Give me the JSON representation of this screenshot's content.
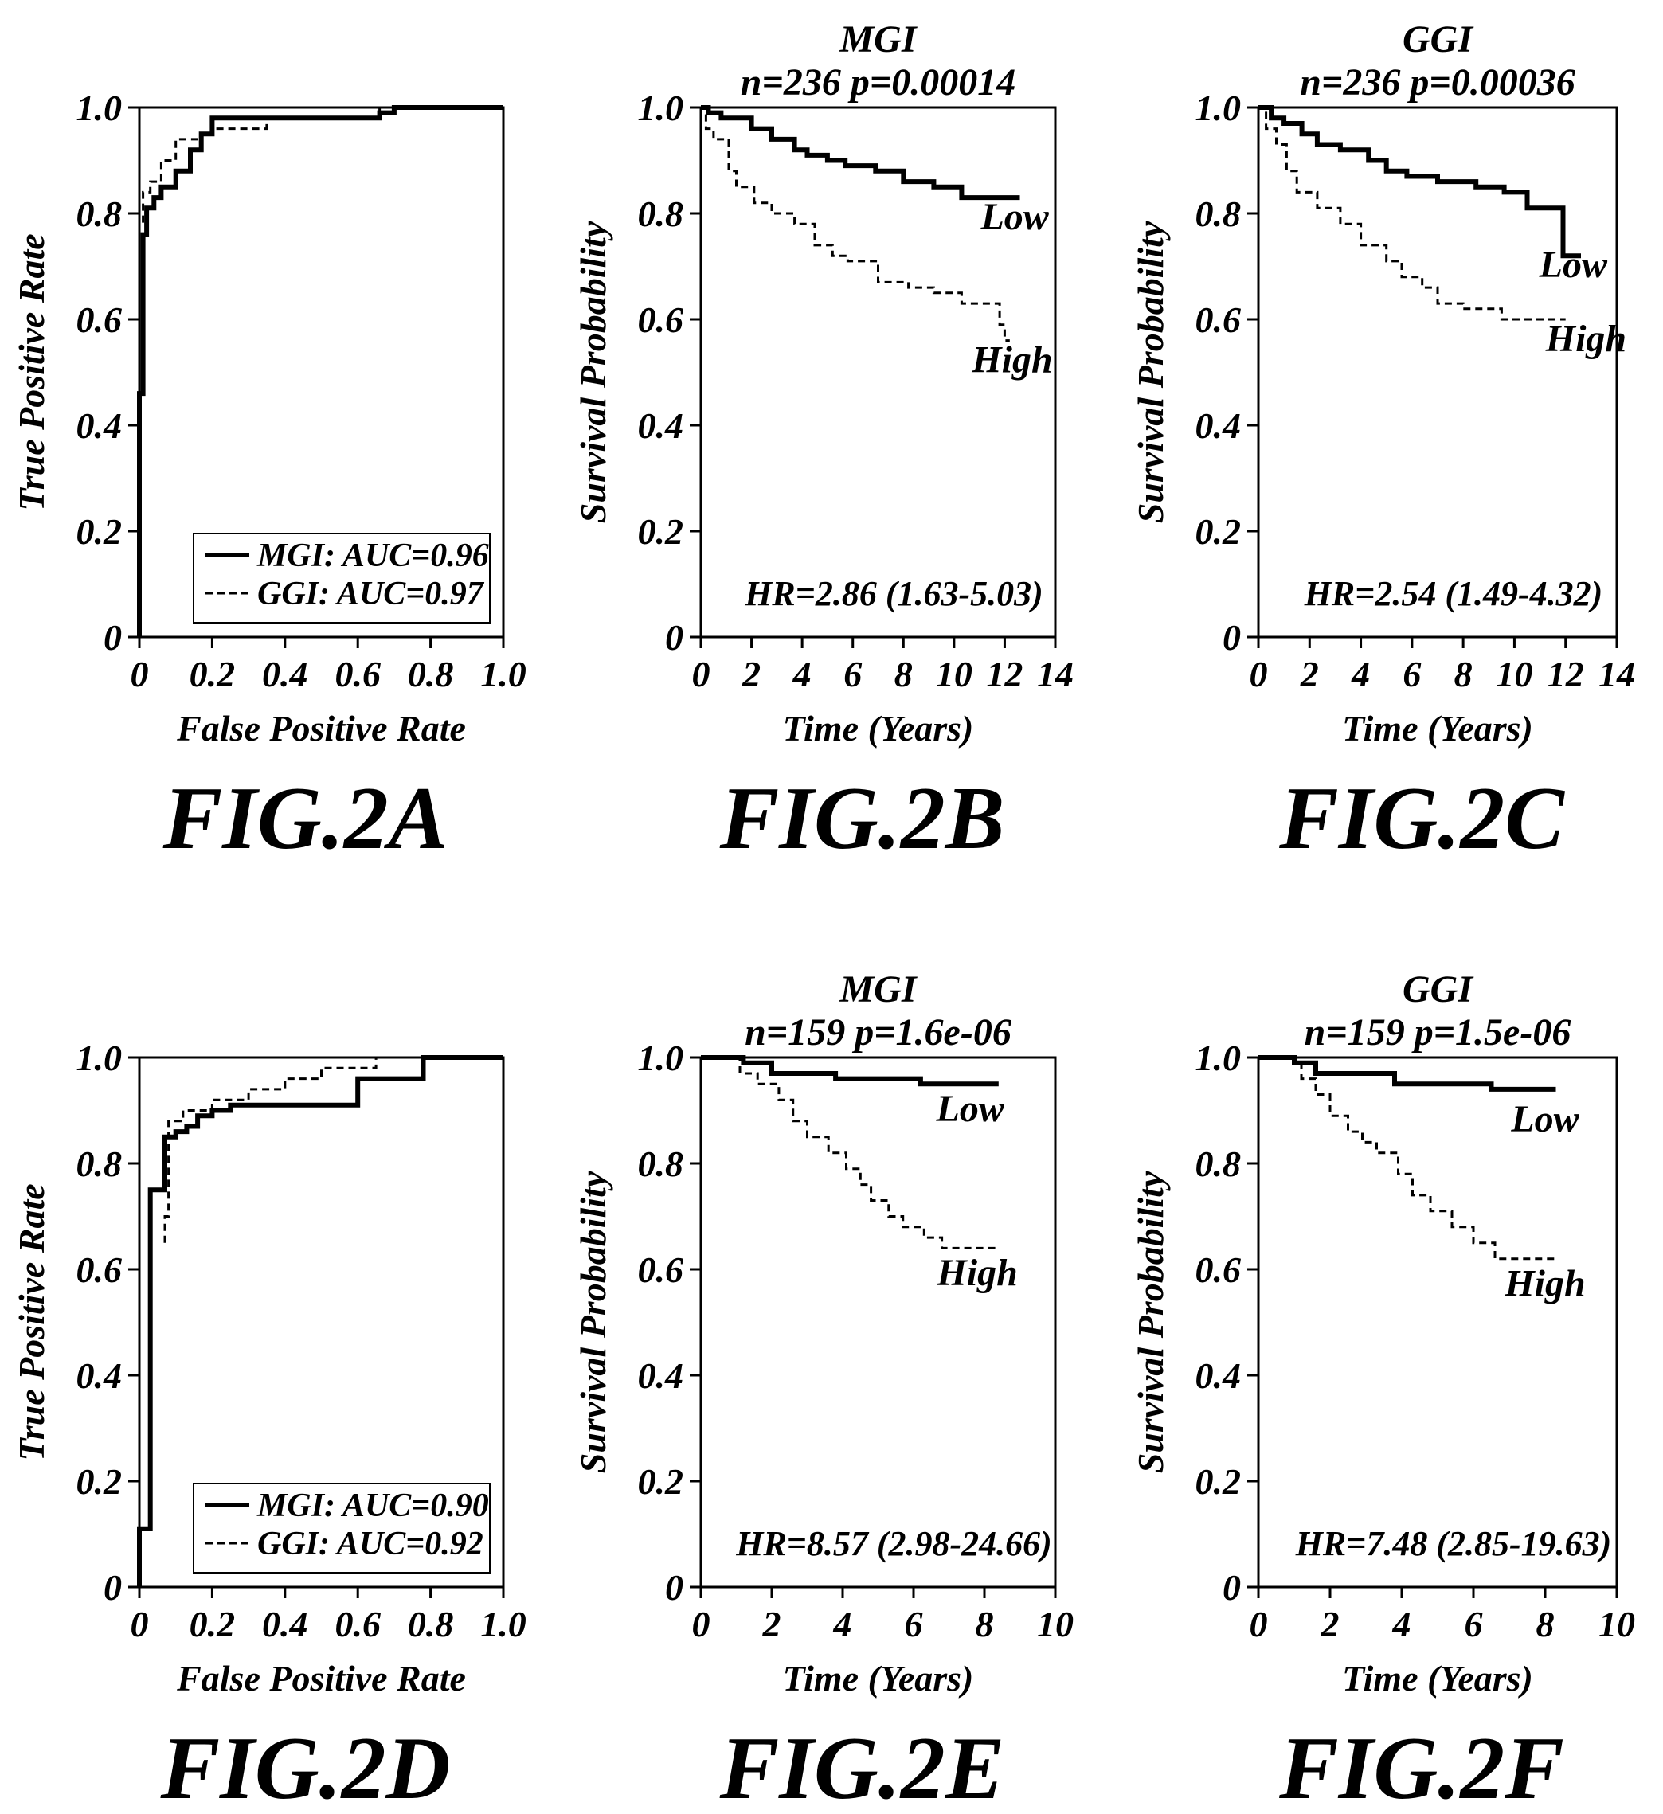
{
  "chart_data": [
    {
      "panel": "FIG.2A",
      "type": "line",
      "xlabel": "False Positive Rate",
      "ylabel": "True Positive Rate",
      "xlim": [
        0,
        1
      ],
      "ylim": [
        0,
        1
      ],
      "xticks": [
        "0",
        "0.2",
        "0.4",
        "0.6",
        "0.8",
        "1.0"
      ],
      "yticks": [
        "0",
        "0.2",
        "0.4",
        "0.6",
        "0.8",
        "1.0"
      ],
      "legend": [
        "MGI: AUC=0.96",
        "GGI: AUC=0.97"
      ],
      "legend_position": "bottom-right",
      "series": [
        {
          "name": "MGI: AUC=0.96",
          "style": "solid",
          "x": [
            0,
            0,
            0.01,
            0.01,
            0.02,
            0.02,
            0.04,
            0.04,
            0.06,
            0.06,
            0.1,
            0.1,
            0.14,
            0.14,
            0.17,
            0.17,
            0.2,
            0.2,
            0.66,
            0.66,
            0.7,
            0.7,
            1.0
          ],
          "y": [
            0,
            0.46,
            0.46,
            0.76,
            0.76,
            0.81,
            0.81,
            0.83,
            0.83,
            0.85,
            0.85,
            0.88,
            0.88,
            0.92,
            0.92,
            0.95,
            0.95,
            0.98,
            0.98,
            0.99,
            0.99,
            1.0,
            1.0
          ]
        },
        {
          "name": "GGI: AUC=0.97",
          "style": "dashed",
          "x": [
            0,
            0,
            0.01,
            0.01,
            0.03,
            0.03,
            0.06,
            0.06,
            0.1,
            0.1,
            0.17,
            0.17,
            0.2,
            0.2,
            0.35,
            0.35,
            0.66,
            0.66,
            1.0
          ],
          "y": [
            0,
            0.78,
            0.78,
            0.84,
            0.84,
            0.86,
            0.86,
            0.9,
            0.9,
            0.94,
            0.94,
            0.95,
            0.95,
            0.96,
            0.96,
            0.98,
            0.98,
            1.0,
            1.0
          ]
        }
      ],
      "figure_label": "FIG.2A"
    },
    {
      "panel": "FIG.2B",
      "type": "line",
      "title": "MGI",
      "subtitle": "n=236  p=0.00014",
      "xlabel": "Time  (Years)",
      "ylabel": "Survival Probability",
      "xlim": [
        0,
        14
      ],
      "ylim": [
        0,
        1
      ],
      "xticks": [
        "0",
        "2",
        "4",
        "6",
        "8",
        "10",
        "12",
        "14"
      ],
      "yticks": [
        "0",
        "0.2",
        "0.4",
        "0.6",
        "0.8",
        "1.0"
      ],
      "annotation": "HR=2.86 (1.63-5.03)",
      "series": [
        {
          "name": "Low",
          "style": "solid",
          "x": [
            0,
            0.3,
            0.3,
            0.8,
            0.8,
            2.0,
            2.0,
            2.8,
            2.8,
            3.7,
            3.7,
            4.2,
            4.2,
            5.0,
            5.0,
            5.7,
            5.7,
            6.9,
            6.9,
            8.0,
            8.0,
            9.2,
            9.2,
            10.3,
            10.3,
            11.8,
            11.8,
            12.6
          ],
          "y": [
            1.0,
            1.0,
            0.99,
            0.99,
            0.98,
            0.98,
            0.96,
            0.96,
            0.94,
            0.94,
            0.92,
            0.92,
            0.91,
            0.91,
            0.9,
            0.9,
            0.89,
            0.89,
            0.88,
            0.88,
            0.86,
            0.86,
            0.85,
            0.85,
            0.83,
            0.83,
            0.83,
            0.83
          ]
        },
        {
          "name": "High",
          "style": "dashed",
          "x": [
            0,
            0.2,
            0.2,
            0.5,
            0.5,
            1.1,
            1.1,
            1.4,
            1.4,
            2.1,
            2.1,
            2.8,
            2.8,
            3.7,
            3.7,
            4.5,
            4.5,
            5.2,
            5.2,
            5.8,
            5.8,
            7.0,
            7.0,
            8.2,
            8.2,
            9.2,
            9.2,
            10.3,
            10.3,
            11.8,
            11.8,
            12.0,
            12.0,
            12.2
          ],
          "y": [
            1.0,
            1.0,
            0.96,
            0.96,
            0.94,
            0.94,
            0.88,
            0.88,
            0.85,
            0.85,
            0.82,
            0.82,
            0.8,
            0.8,
            0.78,
            0.78,
            0.74,
            0.74,
            0.72,
            0.72,
            0.71,
            0.71,
            0.67,
            0.67,
            0.66,
            0.66,
            0.65,
            0.65,
            0.63,
            0.63,
            0.59,
            0.59,
            0.56,
            0.56
          ]
        }
      ],
      "series_labels": [
        "Low",
        "High"
      ],
      "figure_label": "FIG.2B"
    },
    {
      "panel": "FIG.2C",
      "type": "line",
      "title": "GGI",
      "subtitle": "n=236  p=0.00036",
      "xlabel": "Time  (Years)",
      "ylabel": "Survival Probability",
      "xlim": [
        0,
        14
      ],
      "ylim": [
        0,
        1
      ],
      "xticks": [
        "0",
        "2",
        "4",
        "6",
        "8",
        "10",
        "12",
        "14"
      ],
      "yticks": [
        "0",
        "0.2",
        "0.4",
        "0.6",
        "0.8",
        "1.0"
      ],
      "annotation": "HR=2.54 (1.49-4.32)",
      "series": [
        {
          "name": "Low",
          "style": "solid",
          "x": [
            0,
            0.5,
            0.5,
            1.0,
            1.0,
            1.7,
            1.7,
            2.3,
            2.3,
            3.2,
            3.2,
            4.3,
            4.3,
            5.0,
            5.0,
            5.8,
            5.8,
            7.0,
            7.0,
            8.5,
            8.5,
            9.6,
            9.6,
            10.5,
            10.5,
            11.9,
            11.9,
            12.6
          ],
          "y": [
            1.0,
            1.0,
            0.98,
            0.98,
            0.97,
            0.97,
            0.95,
            0.95,
            0.93,
            0.93,
            0.92,
            0.92,
            0.9,
            0.9,
            0.88,
            0.88,
            0.87,
            0.87,
            0.86,
            0.86,
            0.85,
            0.85,
            0.84,
            0.84,
            0.81,
            0.81,
            0.72,
            0.72
          ]
        },
        {
          "name": "High",
          "style": "dashed",
          "x": [
            0,
            0.3,
            0.3,
            0.7,
            0.7,
            1.1,
            1.1,
            1.5,
            1.5,
            2.3,
            2.3,
            3.2,
            3.2,
            4.0,
            4.0,
            5.0,
            5.0,
            5.6,
            5.6,
            6.4,
            6.4,
            7.0,
            7.0,
            8.0,
            8.0,
            9.5,
            9.5,
            12.0
          ],
          "y": [
            1.0,
            1.0,
            0.96,
            0.96,
            0.93,
            0.93,
            0.88,
            0.88,
            0.84,
            0.84,
            0.81,
            0.81,
            0.78,
            0.78,
            0.74,
            0.74,
            0.71,
            0.71,
            0.68,
            0.68,
            0.66,
            0.66,
            0.63,
            0.63,
            0.62,
            0.62,
            0.6,
            0.6
          ]
        }
      ],
      "series_labels": [
        "Low",
        "High"
      ],
      "figure_label": "FIG.2C"
    },
    {
      "panel": "FIG.2D",
      "type": "line",
      "xlabel": "False Positive Rate",
      "ylabel": "True Positive Rate",
      "xlim": [
        0,
        1
      ],
      "ylim": [
        0,
        1
      ],
      "xticks": [
        "0",
        "0.2",
        "0.4",
        "0.6",
        "0.8",
        "1.0"
      ],
      "yticks": [
        "0",
        "0.2",
        "0.4",
        "0.6",
        "0.8",
        "1.0"
      ],
      "legend": [
        "MGI: AUC=0.90",
        "GGI: AUC=0.92"
      ],
      "legend_position": "bottom-right",
      "series": [
        {
          "name": "MGI: AUC=0.90",
          "style": "solid",
          "x": [
            0,
            0,
            0.03,
            0.03,
            0.07,
            0.07,
            0.1,
            0.1,
            0.13,
            0.13,
            0.16,
            0.16,
            0.2,
            0.2,
            0.25,
            0.25,
            0.6,
            0.6,
            0.78,
            0.78,
            1.0
          ],
          "y": [
            0,
            0.11,
            0.11,
            0.75,
            0.75,
            0.85,
            0.85,
            0.86,
            0.86,
            0.87,
            0.87,
            0.89,
            0.89,
            0.9,
            0.9,
            0.91,
            0.91,
            0.96,
            0.96,
            1.0,
            1.0
          ]
        },
        {
          "name": "GGI: AUC=0.92",
          "style": "dashed",
          "x": [
            0.07,
            0.07,
            0.08,
            0.08,
            0.12,
            0.12,
            0.2,
            0.2,
            0.3,
            0.3,
            0.4,
            0.4,
            0.5,
            0.5,
            0.65,
            0.65,
            1.0
          ],
          "y": [
            0.65,
            0.7,
            0.7,
            0.88,
            0.88,
            0.9,
            0.9,
            0.92,
            0.92,
            0.94,
            0.94,
            0.96,
            0.96,
            0.98,
            0.98,
            1.0,
            1.0
          ]
        }
      ],
      "figure_label": "FIG.2D"
    },
    {
      "panel": "FIG.2E",
      "type": "line",
      "title": "MGI",
      "subtitle": "n=159  p=1.6e-06",
      "xlabel": "Time  (Years)",
      "ylabel": "Survival Probability",
      "xlim": [
        0,
        10
      ],
      "ylim": [
        0,
        1
      ],
      "xticks": [
        "0",
        "2",
        "4",
        "6",
        "8",
        "10"
      ],
      "yticks": [
        "0",
        "0.2",
        "0.4",
        "0.6",
        "0.8",
        "1.0"
      ],
      "annotation": "HR=8.57 (2.98-24.66)",
      "series": [
        {
          "name": "Low",
          "style": "solid",
          "x": [
            0,
            1.2,
            1.2,
            2.0,
            2.0,
            3.8,
            3.8,
            6.2,
            6.2,
            8.4
          ],
          "y": [
            1.0,
            1.0,
            0.99,
            0.99,
            0.97,
            0.97,
            0.96,
            0.96,
            0.95,
            0.95
          ]
        },
        {
          "name": "High",
          "style": "dashed",
          "x": [
            0,
            1.1,
            1.1,
            1.6,
            1.6,
            2.2,
            2.2,
            2.6,
            2.6,
            3.0,
            3.0,
            3.6,
            3.6,
            4.1,
            4.1,
            4.5,
            4.5,
            4.8,
            4.8,
            5.3,
            5.3,
            5.7,
            5.7,
            6.3,
            6.3,
            6.8,
            6.8,
            8.4
          ],
          "y": [
            1.0,
            1.0,
            0.97,
            0.97,
            0.95,
            0.95,
            0.92,
            0.92,
            0.88,
            0.88,
            0.85,
            0.85,
            0.82,
            0.82,
            0.79,
            0.79,
            0.76,
            0.76,
            0.73,
            0.73,
            0.7,
            0.7,
            0.68,
            0.68,
            0.66,
            0.66,
            0.64,
            0.64
          ]
        }
      ],
      "series_labels": [
        "Low",
        "High"
      ],
      "figure_label": "FIG.2E"
    },
    {
      "panel": "FIG.2F",
      "type": "line",
      "title": "GGI",
      "subtitle": "n=159  p=1.5e-06",
      "xlabel": "Time  (Years)",
      "ylabel": "Survival Probability",
      "xlim": [
        0,
        10
      ],
      "ylim": [
        0,
        1
      ],
      "xticks": [
        "0",
        "2",
        "4",
        "6",
        "8",
        "10"
      ],
      "yticks": [
        "0",
        "0.2",
        "0.4",
        "0.6",
        "0.8",
        "1.0"
      ],
      "annotation": "HR=7.48 (2.85-19.63)",
      "series": [
        {
          "name": "Low",
          "style": "solid",
          "x": [
            0,
            1.0,
            1.0,
            1.6,
            1.6,
            3.8,
            3.8,
            6.5,
            6.5,
            8.3
          ],
          "y": [
            1.0,
            1.0,
            0.99,
            0.99,
            0.97,
            0.97,
            0.95,
            0.95,
            0.94,
            0.94
          ]
        },
        {
          "name": "High",
          "style": "dashed",
          "x": [
            0,
            1.2,
            1.2,
            1.6,
            1.6,
            2.0,
            2.0,
            2.5,
            2.5,
            2.9,
            2.9,
            3.3,
            3.3,
            3.9,
            3.9,
            4.3,
            4.3,
            4.8,
            4.8,
            5.4,
            5.4,
            6.0,
            6.0,
            6.6,
            6.6,
            8.3
          ],
          "y": [
            1.0,
            1.0,
            0.96,
            0.96,
            0.93,
            0.93,
            0.89,
            0.89,
            0.86,
            0.86,
            0.84,
            0.84,
            0.82,
            0.82,
            0.78,
            0.78,
            0.74,
            0.74,
            0.71,
            0.71,
            0.68,
            0.68,
            0.65,
            0.65,
            0.62,
            0.62
          ]
        }
      ],
      "series_labels": [
        "Low",
        "High"
      ],
      "figure_label": "FIG.2F"
    }
  ]
}
